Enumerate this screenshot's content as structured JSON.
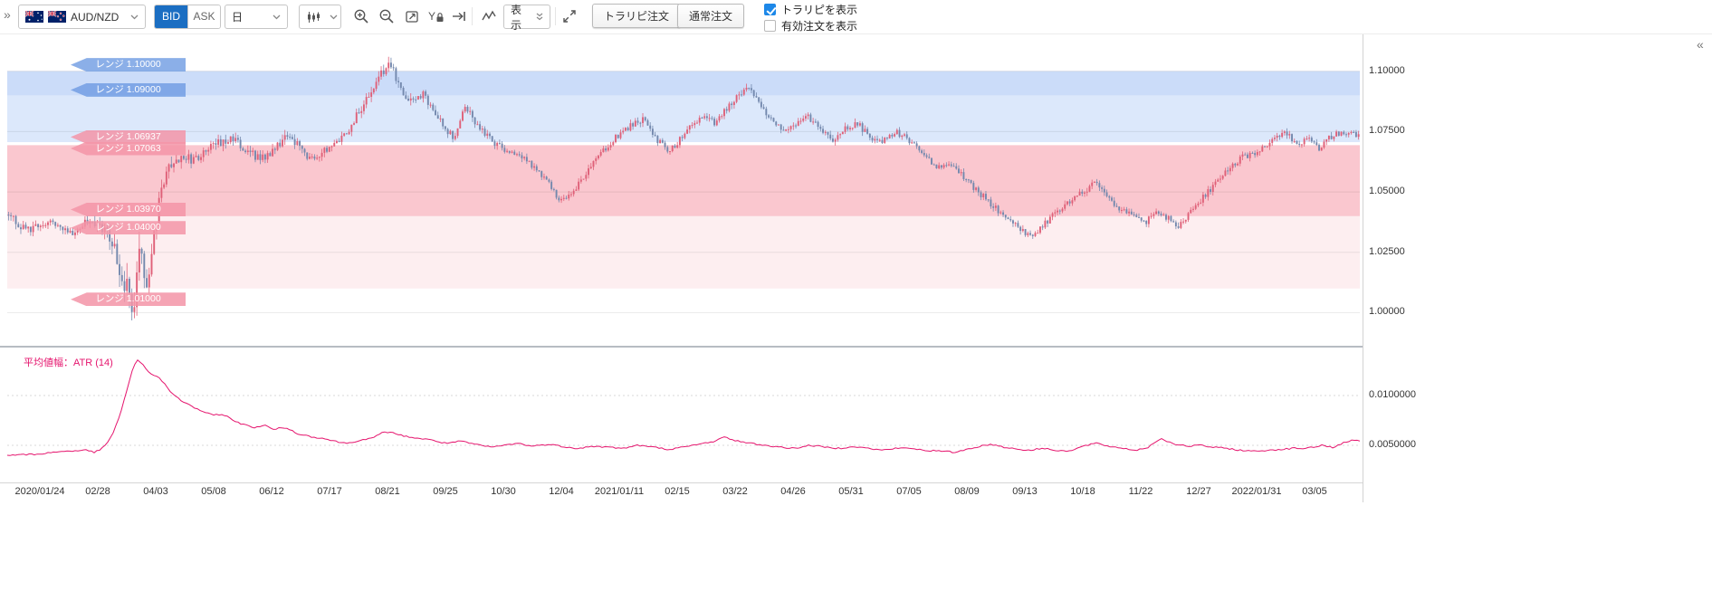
{
  "chrome": {
    "collapse_left": "»",
    "collapse_right": "«"
  },
  "toolbar": {
    "pair_label": "AUD/NZD",
    "bid_label": "BID",
    "ask_label": "ASK",
    "timeframe_value": "日",
    "display_label": "表示",
    "toraripi_order_label": "トラリピ注文",
    "normal_order_label": "通常注文",
    "checkboxes": [
      {
        "label": "トラリピを表示",
        "checked": true
      },
      {
        "label": "有効注文を表示",
        "checked": false
      }
    ],
    "accent_blue": "#1b6ec2",
    "checkbox_blue": "#1d88e8"
  },
  "price_panel": {
    "y_ticks": [
      {
        "label": "1.10000",
        "value": 1.1
      },
      {
        "label": "1.07500",
        "value": 1.075
      },
      {
        "label": "1.05000",
        "value": 1.05
      },
      {
        "label": "1.02500",
        "value": 1.025
      },
      {
        "label": "1.00000",
        "value": 1.0
      }
    ],
    "bands": [
      {
        "from": 1.09,
        "to": 1.1,
        "color": "rgba(82,140,235,0.30)"
      },
      {
        "from": 1.07063,
        "to": 1.09,
        "color": "rgba(82,140,235,0.20)"
      },
      {
        "from": 1.04,
        "to": 1.06937,
        "color": "rgba(240,85,110,0.33)"
      },
      {
        "from": 1.01,
        "to": 1.04,
        "color": "rgba(240,85,110,0.10)"
      }
    ],
    "range_tags": [
      {
        "label": "レンジ 1.10000",
        "price": 1.1,
        "color": "blue",
        "dy": -7
      },
      {
        "label": "レンジ 1.09000",
        "price": 1.09,
        "color": "blue",
        "dy": -6
      },
      {
        "label": "レンジ 1.06937",
        "price": 1.06937,
        "color": "pink",
        "dy": -9
      },
      {
        "label": "レンジ 1.07063",
        "price": 1.07063,
        "color": "pink",
        "dy": 7
      },
      {
        "label": "レンジ 1.03970",
        "price": 1.0397,
        "color": "pink",
        "dy": -8
      },
      {
        "label": "レンジ 1.04000",
        "price": 1.04,
        "color": "pink",
        "dy": 13
      },
      {
        "label": "レンジ 1.01000",
        "price": 1.01,
        "color": "pink",
        "dy": 12
      }
    ]
  },
  "atr_panel": {
    "label": "平均値幅：ATR (14)",
    "y_ticks": [
      {
        "label": "0.0100000",
        "value": 0.01
      },
      {
        "label": "0.0050000",
        "value": 0.005
      }
    ]
  },
  "x_axis": {
    "labels": [
      "2020/01/24",
      "02/28",
      "04/03",
      "05/08",
      "06/12",
      "07/17",
      "08/21",
      "09/25",
      "10/30",
      "12/04",
      "2021/01/11",
      "02/15",
      "03/22",
      "04/26",
      "05/31",
      "07/05",
      "08/09",
      "09/13",
      "10/18",
      "11/22",
      "12/27",
      "2022/01/31",
      "03/05"
    ]
  },
  "chart_data": [
    {
      "type": "candlestick",
      "name": "AUD/NZD 日足",
      "up_color": "#df6078",
      "down_color": "#7388ad",
      "ylim": [
        0.9863,
        1.1145
      ],
      "anchors": [
        [
          2,
          1.04,
          0.004
        ],
        [
          22,
          1.034,
          0.004
        ],
        [
          47,
          1.038,
          0.0035
        ],
        [
          72,
          1.033,
          0.0035
        ],
        [
          92,
          1.039,
          0.004
        ],
        [
          110,
          1.033,
          0.006
        ],
        [
          120,
          1.024,
          0.0095
        ],
        [
          130,
          1.012,
          0.013
        ],
        [
          139,
          1.0005,
          0.013
        ],
        [
          145,
          1.028,
          0.014
        ],
        [
          150,
          1.015,
          0.013
        ],
        [
          155,
          1.006,
          0.011
        ],
        [
          162,
          1.03,
          0.0095
        ],
        [
          170,
          1.052,
          0.0075
        ],
        [
          180,
          1.062,
          0.006
        ],
        [
          192,
          1.065,
          0.005
        ],
        [
          204,
          1.063,
          0.0045
        ],
        [
          217,
          1.066,
          0.004
        ],
        [
          232,
          1.07,
          0.004
        ],
        [
          247,
          1.073,
          0.0045
        ],
        [
          262,
          1.068,
          0.004
        ],
        [
          277,
          1.064,
          0.004
        ],
        [
          292,
          1.066,
          0.004
        ],
        [
          307,
          1.073,
          0.004
        ],
        [
          322,
          1.069,
          0.0035
        ],
        [
          334,
          1.064,
          0.0035
        ],
        [
          347,
          1.066,
          0.0035
        ],
        [
          362,
          1.07,
          0.0035
        ],
        [
          377,
          1.076,
          0.0035
        ],
        [
          392,
          1.085,
          0.004
        ],
        [
          407,
          1.095,
          0.0045
        ],
        [
          420,
          1.103,
          0.005
        ],
        [
          428,
          1.099,
          0.0045
        ],
        [
          440,
          1.09,
          0.004
        ],
        [
          450,
          1.087,
          0.004
        ],
        [
          458,
          1.091,
          0.0035
        ],
        [
          470,
          1.084,
          0.0035
        ],
        [
          482,
          1.077,
          0.0035
        ],
        [
          494,
          1.072,
          0.0035
        ],
        [
          506,
          1.086,
          0.004
        ],
        [
          517,
          1.079,
          0.0035
        ],
        [
          532,
          1.072,
          0.0035
        ],
        [
          549,
          1.068,
          0.003
        ],
        [
          564,
          1.066,
          0.003
        ],
        [
          580,
          1.061,
          0.003
        ],
        [
          594,
          1.056,
          0.003
        ],
        [
          610,
          1.047,
          0.003
        ],
        [
          622,
          1.049,
          0.003
        ],
        [
          637,
          1.056,
          0.003
        ],
        [
          652,
          1.064,
          0.003
        ],
        [
          670,
          1.072,
          0.003
        ],
        [
          687,
          1.077,
          0.003
        ],
        [
          702,
          1.08,
          0.0035
        ],
        [
          714,
          1.073,
          0.003
        ],
        [
          730,
          1.067,
          0.003
        ],
        [
          744,
          1.072,
          0.003
        ],
        [
          760,
          1.079,
          0.003
        ],
        [
          772,
          1.082,
          0.003
        ],
        [
          782,
          1.078,
          0.003
        ],
        [
          794,
          1.084,
          0.003
        ],
        [
          807,
          1.09,
          0.0035
        ],
        [
          817,
          1.094,
          0.0035
        ],
        [
          830,
          1.087,
          0.003
        ],
        [
          844,
          1.08,
          0.003
        ],
        [
          858,
          1.076,
          0.003
        ],
        [
          872,
          1.078,
          0.003
        ],
        [
          885,
          1.081,
          0.003
        ],
        [
          898,
          1.076,
          0.003
        ],
        [
          912,
          1.072,
          0.003
        ],
        [
          927,
          1.077,
          0.003
        ],
        [
          940,
          1.078,
          0.003
        ],
        [
          952,
          1.073,
          0.003
        ],
        [
          967,
          1.071,
          0.0028
        ],
        [
          982,
          1.075,
          0.0028
        ],
        [
          997,
          1.071,
          0.0028
        ],
        [
          1012,
          1.066,
          0.0028
        ],
        [
          1027,
          1.06,
          0.0028
        ],
        [
          1040,
          1.062,
          0.0028
        ],
        [
          1054,
          1.057,
          0.0028
        ],
        [
          1070,
          1.051,
          0.0028
        ],
        [
          1084,
          1.046,
          0.0028
        ],
        [
          1100,
          1.04,
          0.0028
        ],
        [
          1114,
          1.036,
          0.0028
        ],
        [
          1130,
          1.031,
          0.003
        ],
        [
          1144,
          1.036,
          0.003
        ],
        [
          1160,
          1.042,
          0.003
        ],
        [
          1176,
          1.047,
          0.003
        ],
        [
          1192,
          1.051,
          0.003
        ],
        [
          1200,
          1.054,
          0.003
        ],
        [
          1214,
          1.048,
          0.0028
        ],
        [
          1230,
          1.043,
          0.0028
        ],
        [
          1244,
          1.04,
          0.0028
        ],
        [
          1256,
          1.037,
          0.0028
        ],
        [
          1268,
          1.042,
          0.0028
        ],
        [
          1282,
          1.039,
          0.0028
        ],
        [
          1294,
          1.036,
          0.003
        ],
        [
          1307,
          1.042,
          0.003
        ],
        [
          1322,
          1.048,
          0.003
        ],
        [
          1337,
          1.055,
          0.003
        ],
        [
          1352,
          1.061,
          0.003
        ],
        [
          1367,
          1.065,
          0.0028
        ],
        [
          1382,
          1.066,
          0.0028
        ],
        [
          1397,
          1.072,
          0.0028
        ],
        [
          1412,
          1.075,
          0.003
        ],
        [
          1424,
          1.07,
          0.0028
        ],
        [
          1437,
          1.072,
          0.0028
        ],
        [
          1450,
          1.068,
          0.0028
        ],
        [
          1462,
          1.073,
          0.0028
        ],
        [
          1475,
          1.075,
          0.0028
        ],
        [
          1490,
          1.074,
          0.0028
        ]
      ]
    },
    {
      "type": "line",
      "name": "平均値幅：ATR (14)",
      "color": "#e5146d",
      "ylim": [
        0.00136,
        0.01445
      ],
      "anchors": [
        [
          0,
          0.004
        ],
        [
          32,
          0.0041
        ],
        [
          62,
          0.0044
        ],
        [
          87,
          0.0045
        ],
        [
          97,
          0.0043
        ],
        [
          107,
          0.0048
        ],
        [
          117,
          0.0062
        ],
        [
          125,
          0.0082
        ],
        [
          132,
          0.0105
        ],
        [
          139,
          0.0128
        ],
        [
          144,
          0.0135
        ],
        [
          150,
          0.0131
        ],
        [
          156,
          0.0124
        ],
        [
          162,
          0.012
        ],
        [
          168,
          0.0118
        ],
        [
          175,
          0.011
        ],
        [
          184,
          0.01
        ],
        [
          194,
          0.0094
        ],
        [
          204,
          0.0089
        ],
        [
          216,
          0.0084
        ],
        [
          227,
          0.008
        ],
        [
          239,
          0.0081
        ],
        [
          250,
          0.0075
        ],
        [
          260,
          0.0071
        ],
        [
          272,
          0.0068
        ],
        [
          284,
          0.007
        ],
        [
          294,
          0.0066
        ],
        [
          307,
          0.0068
        ],
        [
          320,
          0.0062
        ],
        [
          334,
          0.0059
        ],
        [
          349,
          0.0057
        ],
        [
          362,
          0.0054
        ],
        [
          375,
          0.0052
        ],
        [
          389,
          0.0055
        ],
        [
          404,
          0.0057
        ],
        [
          417,
          0.0064
        ],
        [
          427,
          0.0062
        ],
        [
          440,
          0.0059
        ],
        [
          454,
          0.0057
        ],
        [
          470,
          0.0055
        ],
        [
          484,
          0.0052
        ],
        [
          500,
          0.0054
        ],
        [
          517,
          0.0051
        ],
        [
          534,
          0.0048
        ],
        [
          549,
          0.005
        ],
        [
          564,
          0.0052
        ],
        [
          580,
          0.0049
        ],
        [
          597,
          0.0051
        ],
        [
          612,
          0.0049
        ],
        [
          630,
          0.0047
        ],
        [
          647,
          0.0049
        ],
        [
          664,
          0.0048
        ],
        [
          680,
          0.0047
        ],
        [
          697,
          0.005
        ],
        [
          714,
          0.0048
        ],
        [
          730,
          0.0046
        ],
        [
          747,
          0.0048
        ],
        [
          764,
          0.0051
        ],
        [
          780,
          0.0054
        ],
        [
          792,
          0.0058
        ],
        [
          804,
          0.0055
        ],
        [
          820,
          0.0052
        ],
        [
          837,
          0.005
        ],
        [
          854,
          0.0048
        ],
        [
          870,
          0.0047
        ],
        [
          887,
          0.005
        ],
        [
          904,
          0.0048
        ],
        [
          920,
          0.0047
        ],
        [
          934,
          0.0049
        ],
        [
          950,
          0.0047
        ],
        [
          966,
          0.0045
        ],
        [
          982,
          0.0047
        ],
        [
          997,
          0.0047
        ],
        [
          1014,
          0.0045
        ],
        [
          1032,
          0.0044
        ],
        [
          1047,
          0.0043
        ],
        [
          1060,
          0.0046
        ],
        [
          1074,
          0.0049
        ],
        [
          1087,
          0.0051
        ],
        [
          1102,
          0.0048
        ],
        [
          1117,
          0.0046
        ],
        [
          1130,
          0.0045
        ],
        [
          1144,
          0.0047
        ],
        [
          1160,
          0.0045
        ],
        [
          1174,
          0.0044
        ],
        [
          1188,
          0.0049
        ],
        [
          1202,
          0.0052
        ],
        [
          1217,
          0.0049
        ],
        [
          1232,
          0.0047
        ],
        [
          1247,
          0.0045
        ],
        [
          1260,
          0.0048
        ],
        [
          1274,
          0.0057
        ],
        [
          1287,
          0.0052
        ],
        [
          1302,
          0.0049
        ],
        [
          1317,
          0.005
        ],
        [
          1332,
          0.0048
        ],
        [
          1347,
          0.0047
        ],
        [
          1362,
          0.0045
        ],
        [
          1377,
          0.0044
        ],
        [
          1392,
          0.0045
        ],
        [
          1407,
          0.0046
        ],
        [
          1422,
          0.0047
        ],
        [
          1437,
          0.0047
        ],
        [
          1452,
          0.005
        ],
        [
          1464,
          0.0048
        ],
        [
          1475,
          0.0052
        ],
        [
          1486,
          0.0055
        ]
      ]
    }
  ]
}
